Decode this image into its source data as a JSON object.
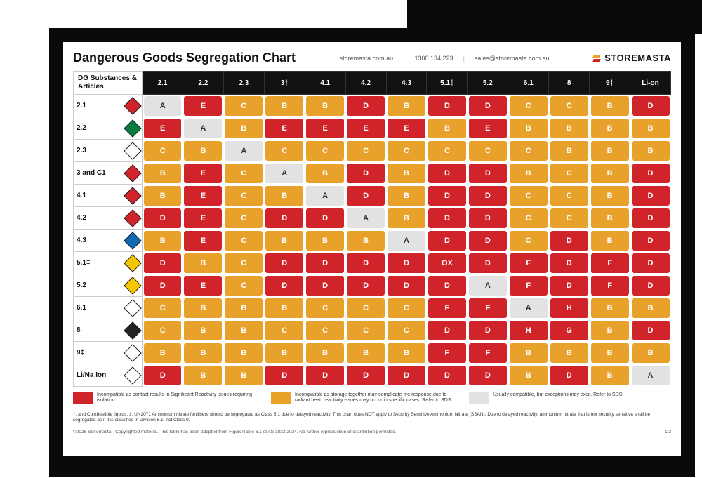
{
  "header": {
    "title": "Dangerous Goods Segregation Chart",
    "website": "storemasta.com.au",
    "phone": "1300 134 223",
    "email": "sales@storemasta.com.au",
    "brand": "STOREMASTA",
    "brand_color_top": "#e8a12a",
    "brand_color_bottom": "#d0232a"
  },
  "chart": {
    "corner_label": "DG Substances & Articles",
    "columns": [
      "2.1",
      "2.2",
      "2.3",
      "3†",
      "4.1",
      "4.2",
      "4.3",
      "5.1‡",
      "5.2",
      "6.1",
      "8",
      "9‡",
      "Li-on"
    ],
    "rows": [
      {
        "label": "2.1",
        "diamond_color": "#d0232a"
      },
      {
        "label": "2.2",
        "diamond_color": "#0a7d3e"
      },
      {
        "label": "2.3",
        "diamond_color": "#ffffff"
      },
      {
        "label": "3 and C1",
        "diamond_color": "#d0232a"
      },
      {
        "label": "4.1",
        "diamond_color": "#d0232a"
      },
      {
        "label": "4.2",
        "diamond_color": "#d0232a"
      },
      {
        "label": "4.3",
        "diamond_color": "#1168b3"
      },
      {
        "label": "5.1‡",
        "diamond_color": "#f6c600"
      },
      {
        "label": "5.2",
        "diamond_color": "#f6c600"
      },
      {
        "label": "6.1",
        "diamond_color": "#ffffff"
      },
      {
        "label": "8",
        "diamond_color": "#222222"
      },
      {
        "label": "9‡",
        "diamond_color": "#ffffff"
      },
      {
        "label": "Li/Na Ion",
        "diamond_color": "#ffffff"
      }
    ],
    "colors": {
      "red": "#d0232a",
      "orange": "#e8a12a",
      "grey": "#e2e2e2"
    },
    "cells": [
      [
        "A",
        "E",
        "C",
        "B",
        "B",
        "D",
        "B",
        "D",
        "D",
        "C",
        "C",
        "B",
        "D"
      ],
      [
        "E",
        "A",
        "B",
        "E",
        "E",
        "E",
        "E",
        "B",
        "E",
        "B",
        "B",
        "B",
        "B"
      ],
      [
        "C",
        "B",
        "A",
        "C",
        "C",
        "C",
        "C",
        "C",
        "C",
        "C",
        "B",
        "B",
        "B"
      ],
      [
        "B",
        "E",
        "C",
        "A",
        "B",
        "D",
        "B",
        "D",
        "D",
        "B",
        "C",
        "B",
        "D"
      ],
      [
        "B",
        "E",
        "C",
        "B",
        "A",
        "D",
        "B",
        "D",
        "D",
        "C",
        "C",
        "B",
        "D"
      ],
      [
        "D",
        "E",
        "C",
        "D",
        "D",
        "A",
        "B",
        "D",
        "D",
        "C",
        "C",
        "B",
        "D"
      ],
      [
        "B",
        "E",
        "C",
        "B",
        "B",
        "B",
        "A",
        "D",
        "D",
        "C",
        "D",
        "B",
        "D"
      ],
      [
        "D",
        "B",
        "C",
        "D",
        "D",
        "D",
        "D",
        "OX",
        "D",
        "F",
        "D",
        "F",
        "D"
      ],
      [
        "D",
        "E",
        "C",
        "D",
        "D",
        "D",
        "D",
        "D",
        "A",
        "F",
        "D",
        "F",
        "D"
      ],
      [
        "C",
        "B",
        "B",
        "B",
        "C",
        "C",
        "C",
        "F",
        "F",
        "A",
        "H",
        "B",
        "B"
      ],
      [
        "C",
        "B",
        "B",
        "C",
        "C",
        "C",
        "C",
        "D",
        "D",
        "H",
        "G",
        "B",
        "D"
      ],
      [
        "B",
        "B",
        "B",
        "B",
        "B",
        "B",
        "B",
        "F",
        "F",
        "B",
        "B",
        "B",
        "B"
      ],
      [
        "D",
        "B",
        "B",
        "D",
        "D",
        "D",
        "D",
        "D",
        "D",
        "B",
        "D",
        "B",
        "A"
      ]
    ],
    "cell_color_map": {
      "A": "grey",
      "OX": "red",
      "D": "red",
      "E": "red",
      "F": "red",
      "G": "red",
      "H": "red",
      "B": "orange",
      "C": "orange"
    }
  },
  "legend": {
    "red_text": "Incompatible as contact results in Significant Reactivity issues requiring isolation.",
    "orange_text": "Incompatible as storage together may complicate fire response due to radiant heat, reactivity issues may occur in specific cases. Refer to SDS.",
    "grey_text": "Usually compatible, but exceptions may exist. Refer to SDS."
  },
  "footnote": "†: and Combustible liquids. ‡: UN2071 Ammonium nitrate fertilisers should be segregated as Class 5.1 due to delayed reactivity. This chart does NOT apply to Security Sensitive Ammonium Nitrate (SSAN). Due to delayed reactivity, ammonium nitrate that is not security sensitive shall be segregated as if it is classified in Division 5.1, not Class 9.",
  "copyright": "©2025 Storemasta - Copyrighted material. This table has been adapted from Figure/Table 6.1 of AS 3833:2024. No further reproduction or distribution permitted.",
  "page": "1/2"
}
